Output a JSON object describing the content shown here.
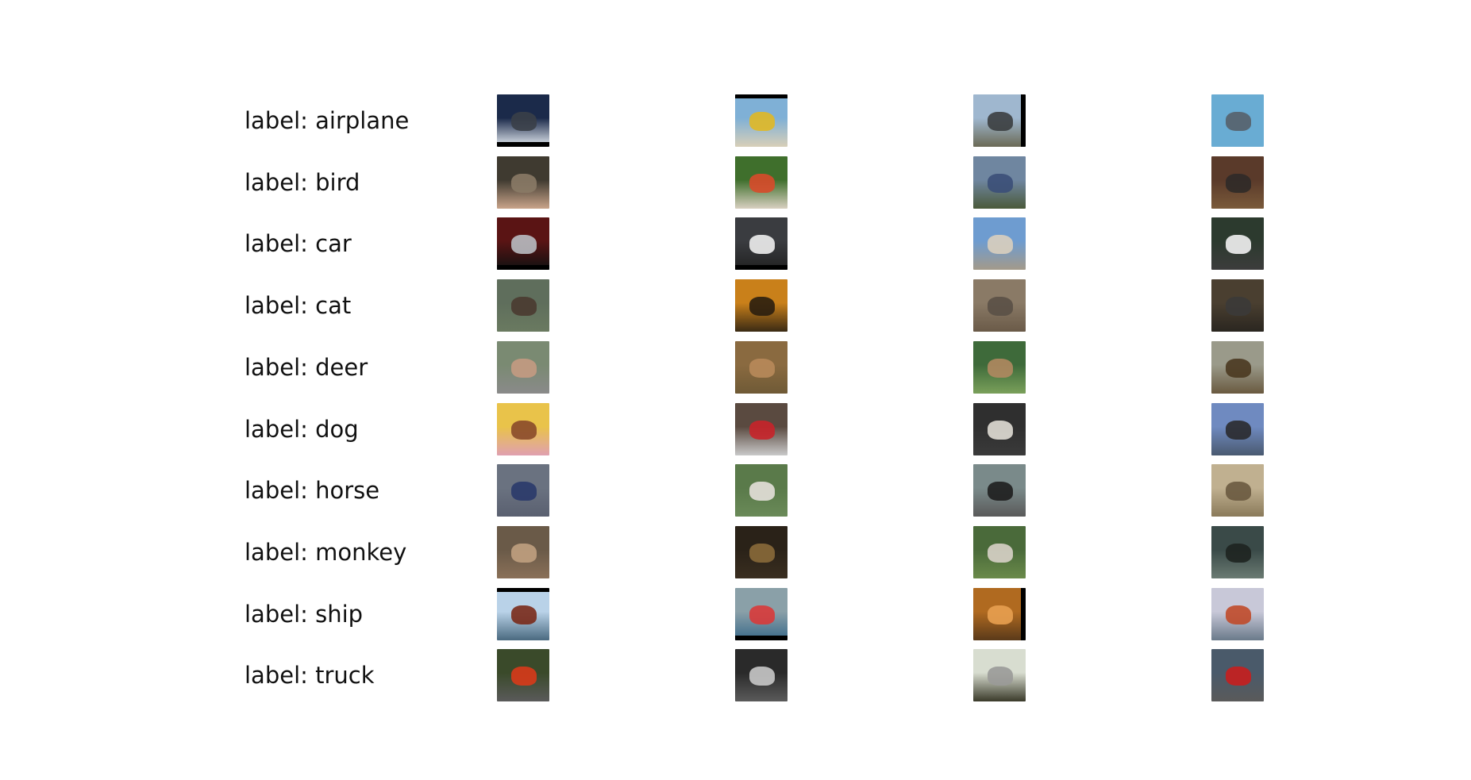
{
  "rows": [
    {
      "label": "label: airplane",
      "thumbs": [
        {
          "name": "airplane-thumb-1",
          "top": "#1b2a4a",
          "bottom": "#e6ecf2",
          "subject": "#3a3f48",
          "bar": "bottom"
        },
        {
          "name": "airplane-thumb-2",
          "top": "#7fb0d6",
          "bottom": "#d8cfb8",
          "subject": "#e0b825",
          "bar": "top"
        },
        {
          "name": "airplane-thumb-3",
          "top": "#9fb7cf",
          "bottom": "#6b6a55",
          "subject": "#3b3e40",
          "bar": "right"
        },
        {
          "name": "airplane-thumb-4",
          "top": "#69acd3",
          "bottom": "#69acd3",
          "subject": "#56606a",
          "bar": ""
        }
      ]
    },
    {
      "label": "label: bird",
      "thumbs": [
        {
          "name": "bird-thumb-1",
          "top": "#3f3a30",
          "bottom": "#c9a48a",
          "subject": "#8a7a66",
          "bar": ""
        },
        {
          "name": "bird-thumb-2",
          "top": "#3f6f2c",
          "bottom": "#d8d0c0",
          "subject": "#d84a2a",
          "bar": ""
        },
        {
          "name": "bird-thumb-3",
          "top": "#6f86a0",
          "bottom": "#4b5a3a",
          "subject": "#3b4f78",
          "bar": ""
        },
        {
          "name": "bird-thumb-4",
          "top": "#5a3a2a",
          "bottom": "#7a5a3a",
          "subject": "#2f2a28",
          "bar": ""
        }
      ]
    },
    {
      "label": "label: car",
      "thumbs": [
        {
          "name": "car-thumb-1",
          "top": "#5a1414",
          "bottom": "#111111",
          "subject": "#b9bdc2",
          "bar": "bottom"
        },
        {
          "name": "car-thumb-2",
          "top": "#3a3c40",
          "bottom": "#222222",
          "subject": "#eeeeee",
          "bar": "bottom"
        },
        {
          "name": "car-thumb-3",
          "top": "#6e9cd0",
          "bottom": "#a39a8a",
          "subject": "#d9cfbe",
          "bar": ""
        },
        {
          "name": "car-thumb-4",
          "top": "#2c3a2e",
          "bottom": "#3c3c3c",
          "subject": "#f2f2f2",
          "bar": ""
        }
      ]
    },
    {
      "label": "label: cat",
      "thumbs": [
        {
          "name": "cat-thumb-1",
          "top": "#5f6e5c",
          "bottom": "#6a7a60",
          "subject": "#4a3a30",
          "bar": ""
        },
        {
          "name": "cat-thumb-2",
          "top": "#c9801a",
          "bottom": "#3a2a14",
          "subject": "#2a1e10",
          "bar": ""
        },
        {
          "name": "cat-thumb-3",
          "top": "#8a7a66",
          "bottom": "#6a5a48",
          "subject": "#5a5046",
          "bar": ""
        },
        {
          "name": "cat-thumb-4",
          "top": "#4a3f30",
          "bottom": "#2a2620",
          "subject": "#3b3a38",
          "bar": ""
        }
      ]
    },
    {
      "label": "label: deer",
      "thumbs": [
        {
          "name": "deer-thumb-1",
          "top": "#7a8a72",
          "bottom": "#8a8a8a",
          "subject": "#c49a82",
          "bar": ""
        },
        {
          "name": "deer-thumb-2",
          "top": "#8a6a40",
          "bottom": "#6f5a36",
          "subject": "#b88a5a",
          "bar": ""
        },
        {
          "name": "deer-thumb-3",
          "top": "#3e6a3a",
          "bottom": "#7aa05a",
          "subject": "#b08860",
          "bar": ""
        },
        {
          "name": "deer-thumb-4",
          "top": "#9a9a8a",
          "bottom": "#6a5a40",
          "subject": "#4a3820",
          "bar": ""
        }
      ]
    },
    {
      "label": "label: dog",
      "thumbs": [
        {
          "name": "dog-thumb-1",
          "top": "#e9c34a",
          "bottom": "#e0a0b0",
          "subject": "#8a4a2a",
          "bar": ""
        },
        {
          "name": "dog-thumb-2",
          "top": "#5a4a40",
          "bottom": "#c9c9c9",
          "subject": "#c8242a",
          "bar": ""
        },
        {
          "name": "dog-thumb-3",
          "top": "#2f2f2f",
          "bottom": "#3a3a3a",
          "subject": "#e0ddd5",
          "bar": ""
        },
        {
          "name": "dog-thumb-4",
          "top": "#6f8ac0",
          "bottom": "#4a5a70",
          "subject": "#2a2a2e",
          "bar": ""
        }
      ]
    },
    {
      "label": "label: horse",
      "thumbs": [
        {
          "name": "horse-thumb-1",
          "top": "#6a7280",
          "bottom": "#5a6070",
          "subject": "#2a3a6a",
          "bar": ""
        },
        {
          "name": "horse-thumb-2",
          "top": "#5a7a4a",
          "bottom": "#6a8a58",
          "subject": "#e4e0da",
          "bar": ""
        },
        {
          "name": "horse-thumb-3",
          "top": "#7a8a8a",
          "bottom": "#5a5a5a",
          "subject": "#1e1e1e",
          "bar": ""
        },
        {
          "name": "horse-thumb-4",
          "top": "#c0b090",
          "bottom": "#8a7a5a",
          "subject": "#6a5a40",
          "bar": ""
        }
      ]
    },
    {
      "label": "label: monkey",
      "thumbs": [
        {
          "name": "monkey-thumb-1",
          "top": "#6a5a48",
          "bottom": "#8a7058",
          "subject": "#c0a080",
          "bar": ""
        },
        {
          "name": "monkey-thumb-2",
          "top": "#2a2218",
          "bottom": "#3a2e20",
          "subject": "#8a6a3a",
          "bar": ""
        },
        {
          "name": "monkey-thumb-3",
          "top": "#4a6a3a",
          "bottom": "#6a8a4a",
          "subject": "#d8d2c8",
          "bar": ""
        },
        {
          "name": "monkey-thumb-4",
          "top": "#3a4a48",
          "bottom": "#6a7a72",
          "subject": "#1e2420",
          "bar": ""
        }
      ]
    },
    {
      "label": "label: ship",
      "thumbs": [
        {
          "name": "ship-thumb-1",
          "top": "#b9d2e8",
          "bottom": "#4a6a80",
          "subject": "#7a2a1a",
          "bar": "top"
        },
        {
          "name": "ship-thumb-2",
          "top": "#8aa0a8",
          "bottom": "#3a6a8a",
          "subject": "#d83a3a",
          "bar": "bottom"
        },
        {
          "name": "ship-thumb-3",
          "top": "#b06a20",
          "bottom": "#5a3a1a",
          "subject": "#e8a050",
          "bar": "right"
        },
        {
          "name": "ship-thumb-4",
          "top": "#c8c8d8",
          "bottom": "#6a7a8a",
          "subject": "#c04a2a",
          "bar": ""
        }
      ]
    },
    {
      "label": "label: truck",
      "thumbs": [
        {
          "name": "truck-thumb-1",
          "top": "#3a4a2a",
          "bottom": "#5a5a5a",
          "subject": "#d83a1a",
          "bar": ""
        },
        {
          "name": "truck-thumb-2",
          "top": "#2a2a2a",
          "bottom": "#5a5a5a",
          "subject": "#c8c8c8",
          "bar": ""
        },
        {
          "name": "truck-thumb-3",
          "top": "#d8ddd0",
          "bottom": "#3a3a2a",
          "subject": "#9a9a98",
          "bar": ""
        },
        {
          "name": "truck-thumb-4",
          "top": "#4a5a6a",
          "bottom": "#5a5a5a",
          "subject": "#c81e1e",
          "bar": ""
        }
      ]
    }
  ]
}
